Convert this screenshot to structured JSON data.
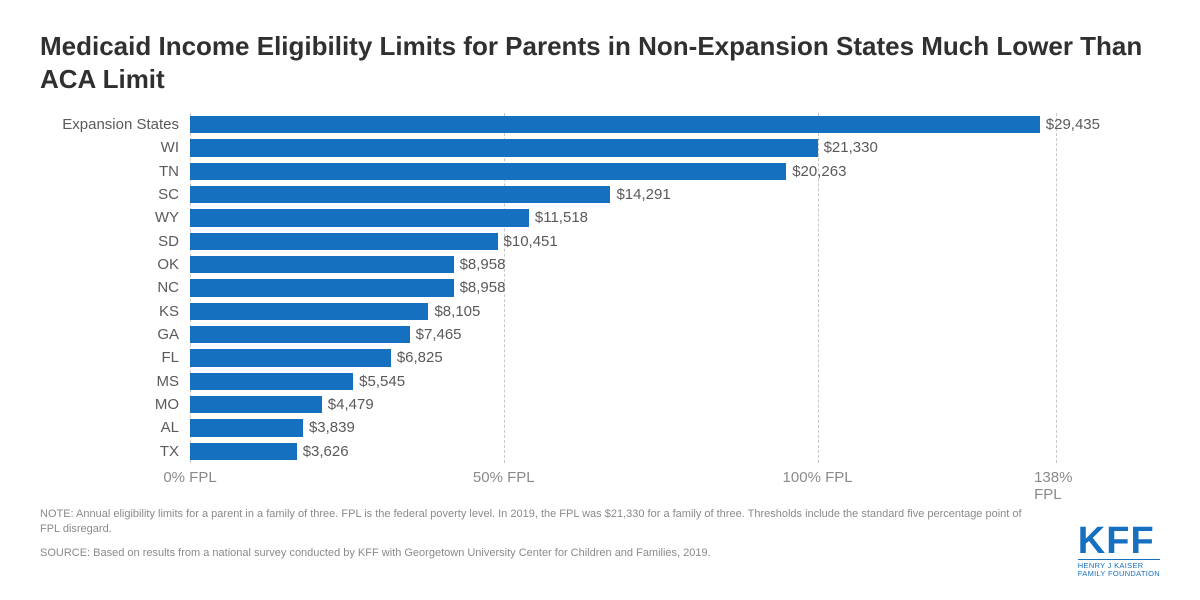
{
  "title": "Medicaid Income Eligibility Limits for Parents in Non-Expansion States Much Lower Than ACA Limit",
  "chart": {
    "type": "bar-horizontal",
    "bar_color": "#1570c0",
    "grid_color": "#c7c7c7",
    "text_color": "#5a5a5a",
    "background_color": "#ffffff",
    "label_fontsize": 15,
    "x_max_pct": 145,
    "gridlines_pct": [
      0,
      50,
      100,
      138
    ],
    "xticks": [
      {
        "pct": 0,
        "label": "0% FPL"
      },
      {
        "pct": 50,
        "label": "50% FPL"
      },
      {
        "pct": 100,
        "label": "100% FPL"
      },
      {
        "pct": 138,
        "label": "138% FPL"
      }
    ],
    "items": [
      {
        "label": "Expansion States",
        "pct": 138,
        "value_label": "$29,435"
      },
      {
        "label": "WI",
        "pct": 100,
        "value_label": "$21,330"
      },
      {
        "label": "TN",
        "pct": 95,
        "value_label": "$20,263"
      },
      {
        "label": "SC",
        "pct": 67,
        "value_label": "$14,291"
      },
      {
        "label": "WY",
        "pct": 54,
        "value_label": "$11,518"
      },
      {
        "label": "SD",
        "pct": 49,
        "value_label": "$10,451"
      },
      {
        "label": "OK",
        "pct": 42,
        "value_label": "$8,958"
      },
      {
        "label": "NC",
        "pct": 42,
        "value_label": "$8,958"
      },
      {
        "label": "KS",
        "pct": 38,
        "value_label": "$8,105"
      },
      {
        "label": "GA",
        "pct": 35,
        "value_label": "$7,465"
      },
      {
        "label": "FL",
        "pct": 32,
        "value_label": "$6,825"
      },
      {
        "label": "MS",
        "pct": 26,
        "value_label": "$5,545"
      },
      {
        "label": "MO",
        "pct": 21,
        "value_label": "$4,479"
      },
      {
        "label": "AL",
        "pct": 18,
        "value_label": "$3,839"
      },
      {
        "label": "TX",
        "pct": 17,
        "value_label": "$3,626"
      }
    ]
  },
  "note": "NOTE: Annual eligibility limits for a parent in a family of three. FPL is the federal poverty level. In 2019, the FPL was $21,330 for a family of three. Thresholds include the standard five percentage point of FPL disregard.",
  "source": "SOURCE: Based on results from a national survey conducted by KFF with Georgetown University Center for Children and Families, 2019.",
  "logo": {
    "main": "KFF",
    "sub1": "HENRY J KAISER",
    "sub2": "FAMILY FOUNDATION"
  }
}
